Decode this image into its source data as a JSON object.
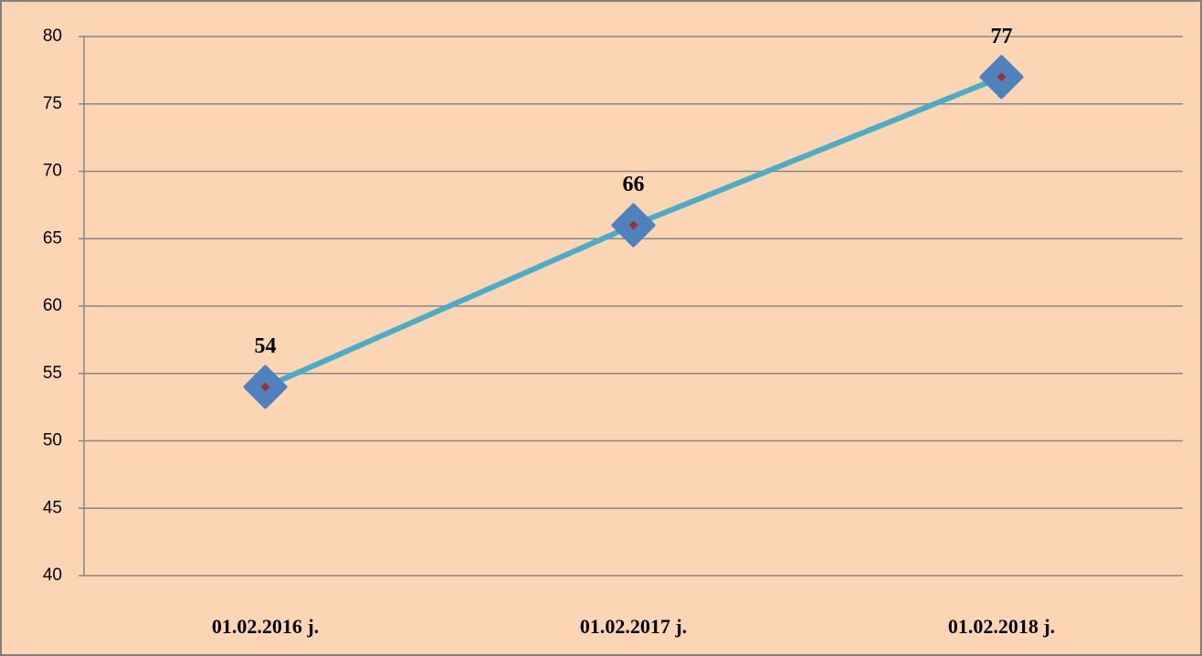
{
  "chart_data": {
    "type": "line",
    "categories": [
      "01.02.2016 j.",
      "01.02.2017 j.",
      "01.02.2018 j."
    ],
    "values": [
      54,
      66,
      77
    ],
    "color": "#4bacc6",
    "marker_color": "#4f81bd",
    "ylim": [
      40,
      80
    ],
    "yticks": [
      40,
      45,
      50,
      55,
      60,
      65,
      70,
      75,
      80
    ],
    "grid": true
  }
}
